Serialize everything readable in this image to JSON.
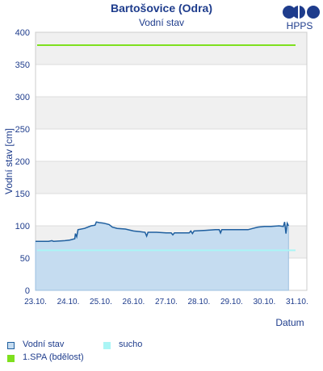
{
  "header": {
    "title": "Bartošovice (Odra)",
    "subtitle": "Vodní stav",
    "logo_text": "HPPS"
  },
  "chart_data": {
    "type": "area",
    "title": "Bartošovice (Odra)",
    "subtitle": "Vodní stav",
    "ylabel": "Vodní stav [cm]",
    "xlabel": "Datum",
    "ylim": [
      0,
      400
    ],
    "yticks": [
      0,
      50,
      100,
      150,
      200,
      250,
      300,
      350,
      400
    ],
    "xlim": [
      0,
      8.3
    ],
    "xticks": [
      {
        "x": 0,
        "label": "23.10."
      },
      {
        "x": 1,
        "label": "24.10."
      },
      {
        "x": 2,
        "label": "25.10."
      },
      {
        "x": 3,
        "label": "26.10."
      },
      {
        "x": 4,
        "label": "27.10."
      },
      {
        "x": 5,
        "label": "28.10."
      },
      {
        "x": 6,
        "label": "29.10."
      },
      {
        "x": 7,
        "label": "30.10."
      },
      {
        "x": 8,
        "label": "31.10."
      }
    ],
    "series": [
      {
        "name": "Vodní stav",
        "color": "#1f5f9f",
        "fill": "#c5dcf0",
        "points": [
          [
            0.0,
            76
          ],
          [
            0.4,
            76
          ],
          [
            0.5,
            77
          ],
          [
            0.55,
            76
          ],
          [
            0.9,
            77
          ],
          [
            1.05,
            78
          ],
          [
            1.2,
            80
          ],
          [
            1.22,
            88
          ],
          [
            1.26,
            83
          ],
          [
            1.3,
            94
          ],
          [
            1.5,
            96
          ],
          [
            1.7,
            100
          ],
          [
            1.82,
            101
          ],
          [
            1.86,
            106
          ],
          [
            1.95,
            105
          ],
          [
            2.1,
            104
          ],
          [
            2.25,
            102
          ],
          [
            2.35,
            98
          ],
          [
            2.5,
            96
          ],
          [
            2.75,
            95
          ],
          [
            3.0,
            92
          ],
          [
            3.2,
            91
          ],
          [
            3.35,
            90
          ],
          [
            3.4,
            84
          ],
          [
            3.44,
            90
          ],
          [
            3.7,
            90
          ],
          [
            4.0,
            89
          ],
          [
            4.15,
            89
          ],
          [
            4.2,
            86
          ],
          [
            4.25,
            89
          ],
          [
            4.5,
            89
          ],
          [
            4.7,
            89
          ],
          [
            4.75,
            92
          ],
          [
            4.8,
            88
          ],
          [
            4.85,
            92
          ],
          [
            5.2,
            93
          ],
          [
            5.5,
            94
          ],
          [
            5.62,
            94
          ],
          [
            5.66,
            89
          ],
          [
            5.7,
            94
          ],
          [
            6.0,
            94
          ],
          [
            6.5,
            94
          ],
          [
            6.65,
            96
          ],
          [
            6.8,
            98
          ],
          [
            7.0,
            99
          ],
          [
            7.2,
            99
          ],
          [
            7.45,
            100
          ],
          [
            7.58,
            99
          ],
          [
            7.62,
            106
          ],
          [
            7.66,
            88
          ],
          [
            7.7,
            104
          ],
          [
            7.74,
            100
          ]
        ]
      },
      {
        "name": "sucho",
        "color": "#aaf5f5",
        "value": 62
      },
      {
        "name": "1.SPA (bdělost)",
        "color": "#7ee01e",
        "value": 380
      }
    ],
    "grid": true,
    "legend": "bottom-left"
  },
  "legend": {
    "items": [
      {
        "label": "Vodní stav",
        "color": "#c5dcf0",
        "border": "#1f5f9f"
      },
      {
        "label": "sucho",
        "color": "#aaf5f5",
        "border": "#aaf5f5"
      },
      {
        "label": "1.SPA (bdělost)",
        "color": "#7ee01e",
        "border": "#7ee01e"
      }
    ]
  }
}
